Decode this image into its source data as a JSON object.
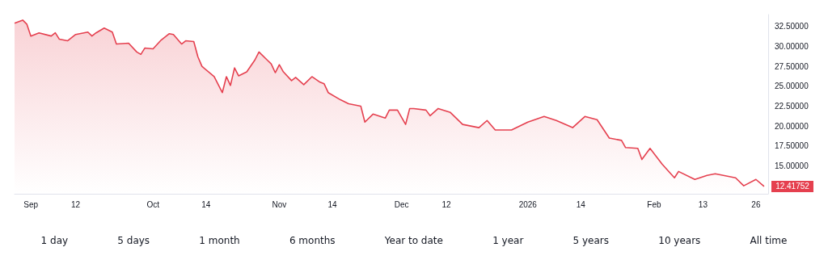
{
  "chart_data": {
    "type": "area",
    "color": "#e5404f",
    "marker": "none",
    "grid": false,
    "xlim": [
      "2025-08-28",
      "2026-03-01"
    ],
    "ylim": [
      11.5,
      34
    ],
    "xticks": [
      {
        "value": "2025-09-01",
        "label": "Sep"
      },
      {
        "value": "2025-09-12",
        "label": "12"
      },
      {
        "value": "2025-10-01",
        "label": "Oct"
      },
      {
        "value": "2025-10-14",
        "label": "14"
      },
      {
        "value": "2025-11-01",
        "label": "Nov"
      },
      {
        "value": "2025-11-14",
        "label": "14"
      },
      {
        "value": "2025-12-01",
        "label": "Dec"
      },
      {
        "value": "2025-12-12",
        "label": "12"
      },
      {
        "value": "2026-01-01",
        "label": "2026"
      },
      {
        "value": "2026-01-14",
        "label": "14"
      },
      {
        "value": "2026-02-01",
        "label": "Feb"
      },
      {
        "value": "2026-02-13",
        "label": "13"
      },
      {
        "value": "2026-02-26",
        "label": "26"
      }
    ],
    "yticks": [
      {
        "value": 15,
        "label": "15.00000"
      },
      {
        "value": 17.5,
        "label": "17.50000"
      },
      {
        "value": 20,
        "label": "20.00000"
      },
      {
        "value": 22.5,
        "label": "22.50000"
      },
      {
        "value": 25,
        "label": "25.00000"
      },
      {
        "value": 27.5,
        "label": "27.50000"
      },
      {
        "value": 30,
        "label": "30.00000"
      },
      {
        "value": 32.5,
        "label": "32.50000"
      }
    ],
    "x": [
      "2025-08-28",
      "2025-08-30",
      "2025-08-31",
      "2025-09-01",
      "2025-09-03",
      "2025-09-06",
      "2025-09-07",
      "2025-09-08",
      "2025-09-10",
      "2025-09-12",
      "2025-09-15",
      "2025-09-16",
      "2025-09-17",
      "2025-09-19",
      "2025-09-21",
      "2025-09-22",
      "2025-09-25",
      "2025-09-27",
      "2025-09-28",
      "2025-09-29",
      "2025-10-01",
      "2025-10-03",
      "2025-10-05",
      "2025-10-06",
      "2025-10-08",
      "2025-10-09",
      "2025-10-11",
      "2025-10-12",
      "2025-10-13",
      "2025-10-16",
      "2025-10-18",
      "2025-10-19",
      "2025-10-20",
      "2025-10-21",
      "2025-10-22",
      "2025-10-24",
      "2025-10-26",
      "2025-10-27",
      "2025-10-29",
      "2025-10-30",
      "2025-10-31",
      "2025-11-01",
      "2025-11-02",
      "2025-11-04",
      "2025-11-05",
      "2025-11-07",
      "2025-11-09",
      "2025-11-11",
      "2025-11-12",
      "2025-11-13",
      "2025-11-16",
      "2025-11-18",
      "2025-11-21",
      "2025-11-22",
      "2025-11-24",
      "2025-11-27",
      "2025-11-28",
      "2025-11-30",
      "2025-12-02",
      "2025-12-03",
      "2025-12-04",
      "2025-12-07",
      "2025-12-08",
      "2025-12-10",
      "2025-12-13",
      "2025-12-16",
      "2025-12-20",
      "2025-12-22",
      "2025-12-24",
      "2025-12-28",
      "2026-01-01",
      "2026-01-05",
      "2026-01-08",
      "2026-01-12",
      "2026-01-15",
      "2026-01-18",
      "2026-01-21",
      "2026-01-24",
      "2026-01-25",
      "2026-01-28",
      "2026-01-29",
      "2026-01-31",
      "2026-02-03",
      "2026-02-06",
      "2026-02-07",
      "2026-02-11",
      "2026-02-14",
      "2026-02-16",
      "2026-02-21",
      "2026-02-23",
      "2026-02-26",
      "2026-02-28"
    ],
    "values": [
      32.9,
      33.3,
      32.8,
      31.3,
      31.7,
      31.3,
      31.7,
      30.9,
      30.7,
      31.5,
      31.8,
      31.3,
      31.7,
      32.3,
      31.8,
      30.3,
      30.4,
      29.3,
      29.0,
      29.8,
      29.7,
      30.8,
      31.6,
      31.5,
      30.3,
      30.7,
      30.6,
      28.7,
      27.5,
      26.2,
      24.2,
      26.2,
      25.1,
      27.3,
      26.3,
      26.8,
      28.3,
      29.3,
      28.3,
      27.8,
      26.7,
      27.7,
      26.8,
      25.7,
      26.1,
      25.2,
      26.2,
      25.5,
      25.3,
      24.2,
      23.3,
      22.8,
      22.5,
      20.5,
      21.5,
      21.0,
      22.0,
      22.0,
      20.2,
      22.2,
      22.2,
      22.0,
      21.3,
      22.2,
      21.7,
      20.2,
      19.8,
      20.7,
      19.5,
      19.5,
      20.5,
      21.2,
      20.7,
      19.8,
      21.2,
      20.8,
      18.5,
      18.2,
      17.3,
      17.2,
      15.8,
      17.2,
      15.2,
      13.5,
      14.3,
      13.3,
      13.8,
      14.0,
      13.5,
      12.5,
      13.3,
      12.41752
    ],
    "annotations": [
      {
        "text": "12.41752",
        "x": "2026-02-28",
        "y": 12.41752
      },
      "1 day",
      "5 days",
      "1 month",
      "6 months",
      "Year to date",
      "1 year",
      "5 years",
      "10 years",
      "All time"
    ]
  }
}
